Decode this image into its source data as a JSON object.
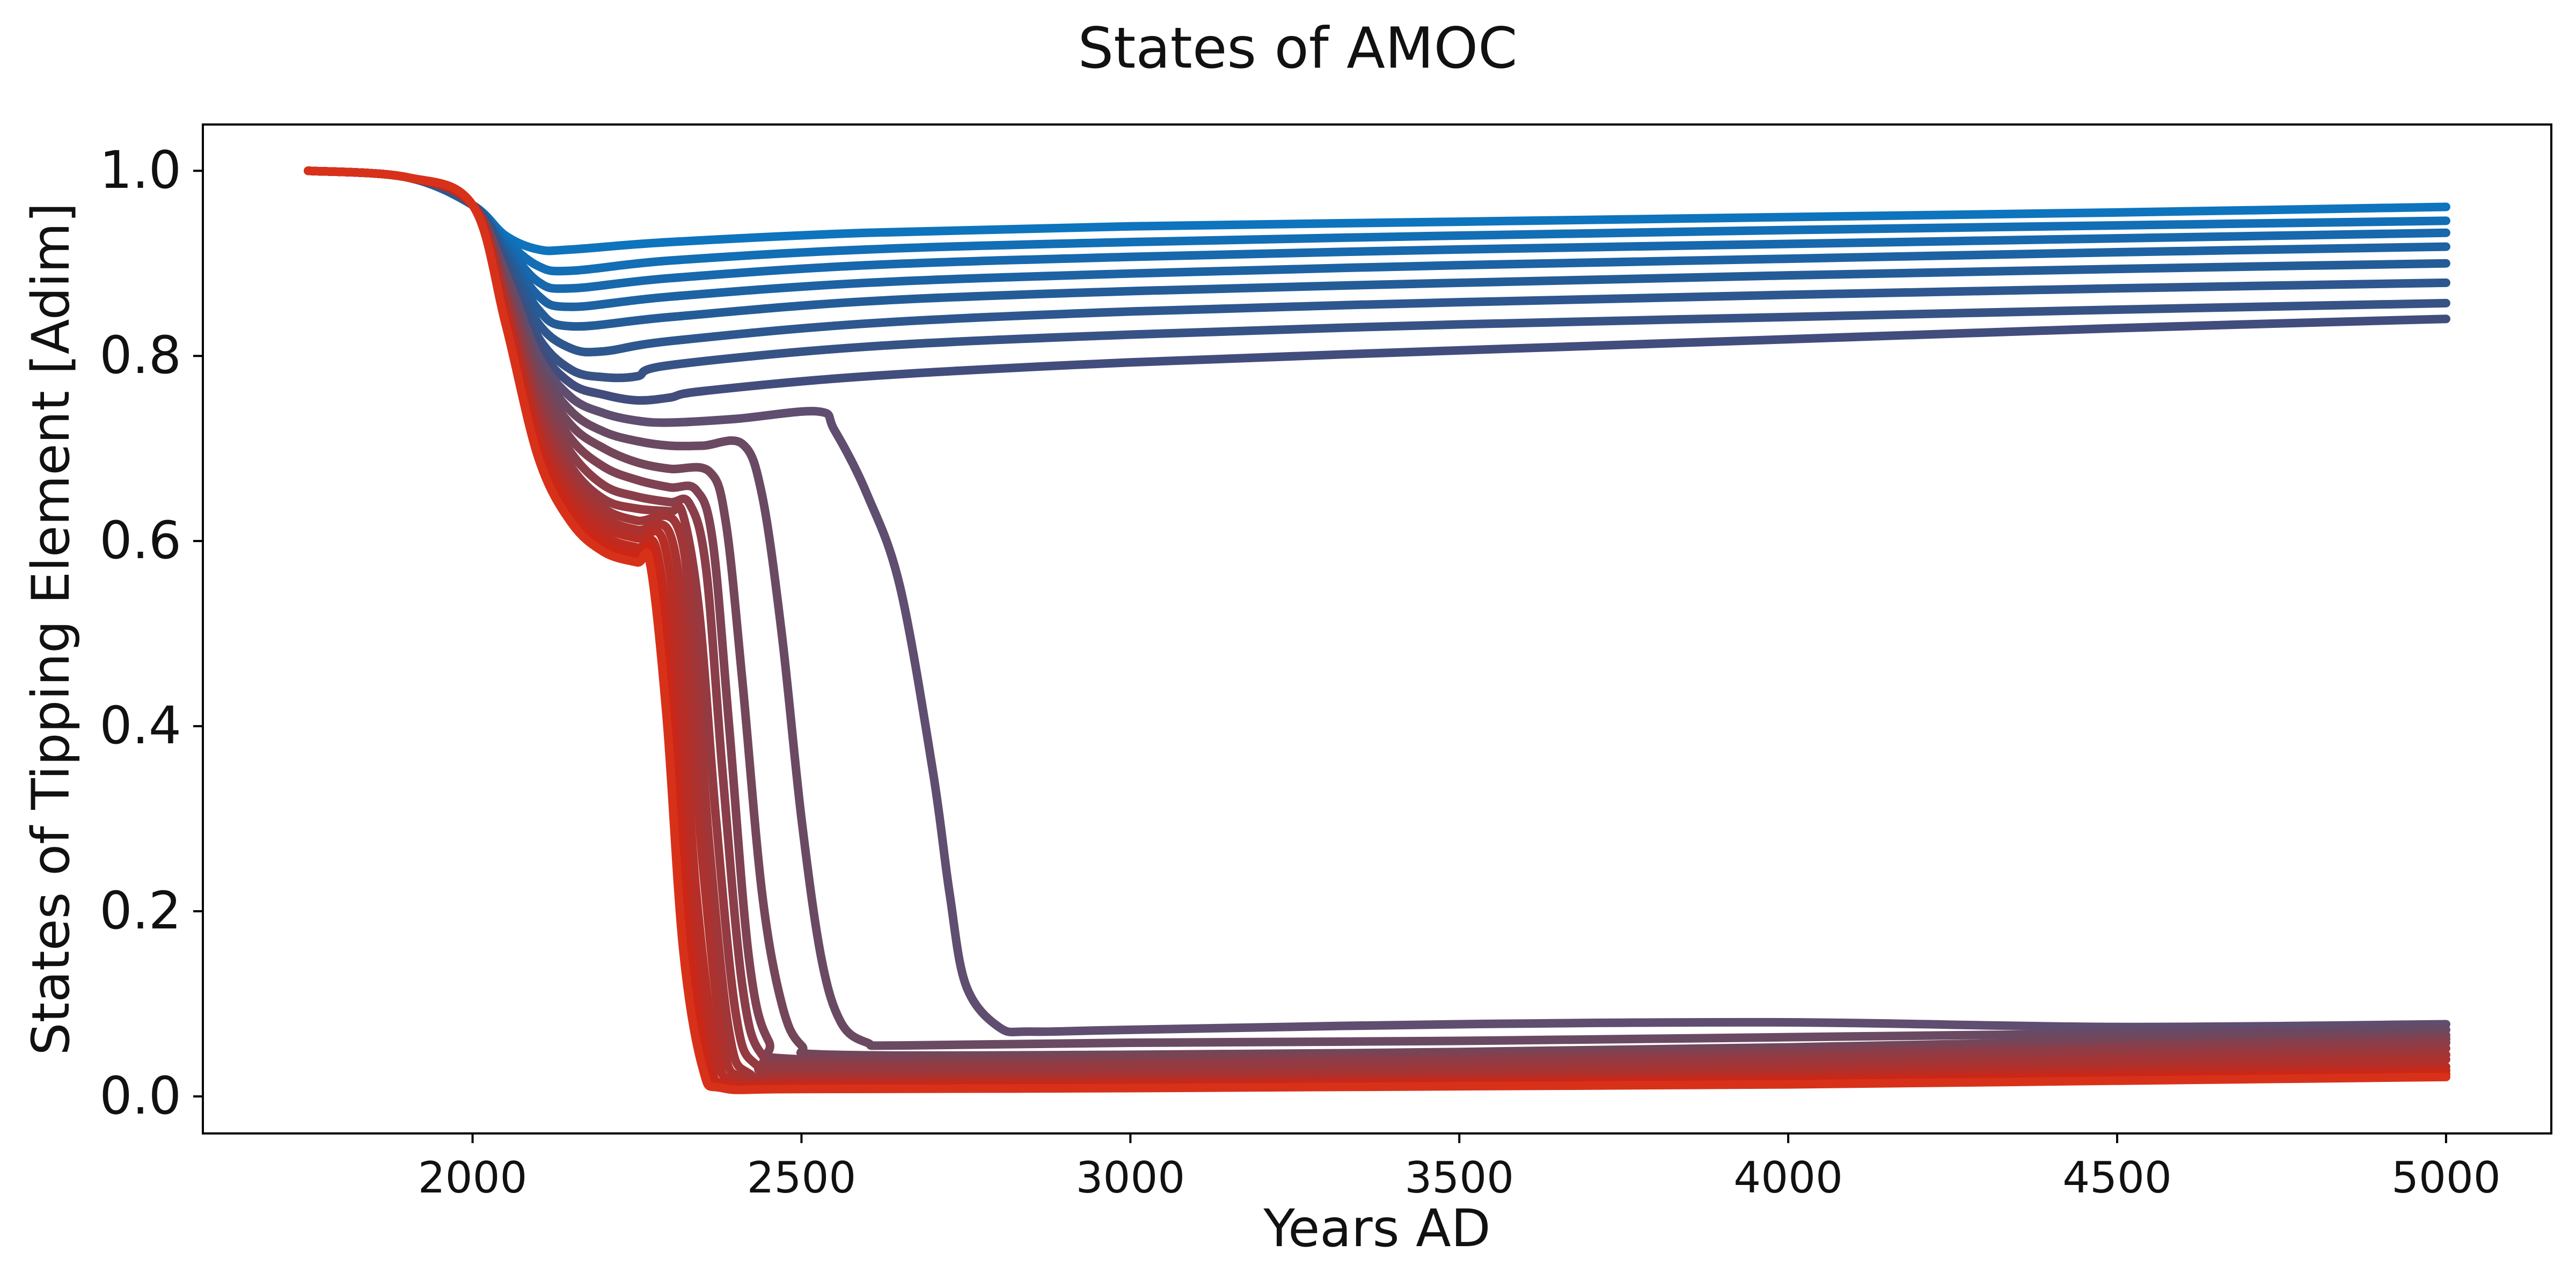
{
  "chart_data": {
    "type": "line",
    "title": "States of AMOC",
    "xlabel": "Years AD",
    "ylabel": "States of Tipping Element [Adim]",
    "xlim": [
      1590,
      5160
    ],
    "ylim": [
      -0.04,
      1.05
    ],
    "xticks": [
      2000,
      2500,
      3000,
      3500,
      4000,
      4500,
      5000
    ],
    "yticks": [
      0.0,
      0.2,
      0.4,
      0.6,
      0.8,
      1.0
    ],
    "xtick_labels": [
      "2000",
      "2500",
      "3000",
      "3500",
      "4000",
      "4500",
      "5000"
    ],
    "ytick_labels": [
      "0.0",
      "0.2",
      "0.4",
      "0.6",
      "0.8",
      "1.0"
    ],
    "grid": false,
    "legend": "none",
    "colors": {
      "blue_end": "#0d74bd",
      "red_end": "#d8311a"
    },
    "series": [
      {
        "color": "#0d74bd",
        "x": [
          1750,
          1900,
          2000,
          2050,
          2100,
          2150,
          2300,
          2600,
          3000,
          3500,
          4000,
          4500,
          5000
        ],
        "y": [
          1.0,
          0.993,
          0.963,
          0.93,
          0.915,
          0.915,
          0.923,
          0.933,
          0.94,
          0.945,
          0.95,
          0.955,
          0.961
        ]
      },
      {
        "color": "#126eb5",
        "x": [
          1750,
          1900,
          2000,
          2050,
          2100,
          2150,
          2300,
          2600,
          3000,
          3500,
          4000,
          4500,
          5000
        ],
        "y": [
          1.0,
          0.993,
          0.963,
          0.925,
          0.897,
          0.892,
          0.903,
          0.915,
          0.923,
          0.93,
          0.936,
          0.941,
          0.946
        ]
      },
      {
        "color": "#1768ac",
        "x": [
          1750,
          1900,
          2000,
          2050,
          2100,
          2150,
          2300,
          2600,
          3000,
          3500,
          4000,
          4500,
          5000
        ],
        "y": [
          1.0,
          0.993,
          0.963,
          0.92,
          0.88,
          0.873,
          0.884,
          0.898,
          0.907,
          0.915,
          0.921,
          0.927,
          0.933
        ]
      },
      {
        "color": "#1d62a3",
        "x": [
          1750,
          1900,
          2000,
          2050,
          2100,
          2150,
          2300,
          2600,
          3000,
          3500,
          4000,
          4500,
          5000
        ],
        "y": [
          1.0,
          0.993,
          0.963,
          0.915,
          0.865,
          0.853,
          0.864,
          0.879,
          0.889,
          0.898,
          0.905,
          0.912,
          0.918
        ]
      },
      {
        "color": "#245c98",
        "x": [
          1750,
          1900,
          2000,
          2050,
          2100,
          2150,
          2300,
          2600,
          3000,
          3500,
          4000,
          4500,
          5000
        ],
        "y": [
          1.0,
          0.993,
          0.963,
          0.91,
          0.85,
          0.832,
          0.842,
          0.859,
          0.87,
          0.879,
          0.887,
          0.894,
          0.9
        ]
      },
      {
        "color": "#2d578e",
        "x": [
          1750,
          1900,
          2000,
          2050,
          2100,
          2150,
          2200,
          2300,
          2600,
          3000,
          3500,
          4000,
          4500,
          5000
        ],
        "y": [
          1.0,
          0.993,
          0.963,
          0.905,
          0.835,
          0.808,
          0.805,
          0.816,
          0.835,
          0.848,
          0.858,
          0.866,
          0.873,
          0.879
        ]
      },
      {
        "color": "#375285",
        "x": [
          1750,
          1900,
          2000,
          2050,
          2100,
          2150,
          2200,
          2250,
          2300,
          2600,
          3000,
          3500,
          4000,
          4500,
          5000
        ],
        "y": [
          1.0,
          0.993,
          0.963,
          0.9,
          0.82,
          0.785,
          0.777,
          0.778,
          0.79,
          0.81,
          0.823,
          0.834,
          0.842,
          0.85,
          0.857
        ]
      },
      {
        "color": "#414d7c",
        "x": [
          1750,
          1900,
          2000,
          2050,
          2100,
          2150,
          2200,
          2250,
          2300,
          2350,
          2600,
          3000,
          3500,
          4000,
          4500,
          5000
        ],
        "y": [
          1.0,
          0.993,
          0.963,
          0.895,
          0.81,
          0.77,
          0.758,
          0.752,
          0.755,
          0.762,
          0.778,
          0.793,
          0.806,
          0.818,
          0.83,
          0.84
        ]
      },
      {
        "color": "#5f4e70",
        "x": [
          1750,
          1900,
          2000,
          2050,
          2100,
          2150,
          2200,
          2250,
          2300,
          2400,
          2525,
          2550,
          2600,
          2650,
          2700,
          2725,
          2750,
          2800,
          2850,
          3000,
          3500,
          4000,
          4500,
          5000
        ],
        "y": [
          1.0,
          0.993,
          0.963,
          0.89,
          0.8,
          0.755,
          0.738,
          0.73,
          0.728,
          0.732,
          0.74,
          0.72,
          0.65,
          0.55,
          0.35,
          0.22,
          0.12,
          0.075,
          0.07,
          0.072,
          0.078,
          0.08,
          0.075,
          0.078
        ]
      },
      {
        "color": "#6a4a63",
        "x": [
          1750,
          1900,
          2000,
          2050,
          2100,
          2150,
          2200,
          2250,
          2300,
          2350,
          2410,
          2440,
          2470,
          2500,
          2530,
          2560,
          2600,
          2650,
          3000,
          3500,
          4000,
          4500,
          5000
        ],
        "y": [
          1.0,
          0.993,
          0.963,
          0.885,
          0.79,
          0.74,
          0.718,
          0.708,
          0.703,
          0.703,
          0.705,
          0.65,
          0.5,
          0.3,
          0.15,
          0.08,
          0.058,
          0.055,
          0.058,
          0.06,
          0.064,
          0.068,
          0.072
        ]
      },
      {
        "color": "#74465a",
        "x": [
          1750,
          1900,
          2000,
          2050,
          2100,
          2150,
          2200,
          2250,
          2300,
          2360,
          2385,
          2410,
          2440,
          2470,
          2500,
          2550,
          3000,
          3500,
          4000,
          4500,
          5000
        ],
        "y": [
          1.0,
          0.993,
          0.963,
          0.88,
          0.78,
          0.725,
          0.7,
          0.685,
          0.678,
          0.675,
          0.62,
          0.45,
          0.22,
          0.1,
          0.055,
          0.045,
          0.045,
          0.048,
          0.053,
          0.06,
          0.066
        ]
      },
      {
        "color": "#7f4252",
        "x": [
          1750,
          1900,
          2000,
          2050,
          2100,
          2150,
          2200,
          2250,
          2300,
          2340,
          2365,
          2390,
          2420,
          2450,
          2500,
          3000,
          3500,
          4000,
          4500,
          5000
        ],
        "y": [
          1.0,
          0.993,
          0.963,
          0.875,
          0.77,
          0.71,
          0.68,
          0.666,
          0.658,
          0.655,
          0.6,
          0.4,
          0.15,
          0.06,
          0.04,
          0.04,
          0.043,
          0.048,
          0.055,
          0.062
        ]
      },
      {
        "color": "#8a3e49",
        "x": [
          1750,
          1900,
          2000,
          2050,
          2100,
          2150,
          2200,
          2250,
          2300,
          2330,
          2355,
          2380,
          2410,
          2440,
          2500,
          3000,
          3500,
          4000,
          4500,
          5000
        ],
        "y": [
          1.0,
          0.993,
          0.963,
          0.87,
          0.76,
          0.695,
          0.66,
          0.648,
          0.642,
          0.64,
          0.57,
          0.35,
          0.12,
          0.045,
          0.035,
          0.036,
          0.04,
          0.045,
          0.052,
          0.058
        ]
      },
      {
        "color": "#953a40",
        "x": [
          1750,
          1900,
          2000,
          2050,
          2100,
          2150,
          2200,
          2250,
          2300,
          2320,
          2345,
          2370,
          2400,
          2430,
          2500,
          3000,
          3500,
          4000,
          4500,
          5000
        ],
        "y": [
          1.0,
          0.993,
          0.963,
          0.865,
          0.75,
          0.68,
          0.645,
          0.635,
          0.632,
          0.628,
          0.52,
          0.3,
          0.09,
          0.035,
          0.03,
          0.032,
          0.035,
          0.04,
          0.046,
          0.052
        ]
      },
      {
        "color": "#a03637",
        "x": [
          1750,
          1900,
          2000,
          2050,
          2100,
          2150,
          2200,
          2250,
          2310,
          2335,
          2360,
          2390,
          2420,
          2500,
          3000,
          3500,
          4000,
          4500,
          5000
        ],
        "y": [
          1.0,
          0.993,
          0.963,
          0.86,
          0.74,
          0.67,
          0.635,
          0.622,
          0.618,
          0.5,
          0.27,
          0.07,
          0.025,
          0.022,
          0.024,
          0.028,
          0.034,
          0.04,
          0.045
        ]
      },
      {
        "color": "#ab322e",
        "x": [
          1750,
          1900,
          2000,
          2050,
          2100,
          2150,
          2200,
          2250,
          2300,
          2325,
          2350,
          2380,
          2410,
          2500,
          3000,
          3500,
          4000,
          4500,
          5000
        ],
        "y": [
          1.0,
          0.993,
          0.963,
          0.855,
          0.73,
          0.66,
          0.625,
          0.612,
          0.608,
          0.48,
          0.25,
          0.06,
          0.02,
          0.018,
          0.02,
          0.022,
          0.028,
          0.034,
          0.04
        ]
      },
      {
        "color": "#b62e26",
        "x": [
          1750,
          1900,
          2000,
          2050,
          2100,
          2150,
          2200,
          2250,
          2290,
          2315,
          2340,
          2370,
          2400,
          2500,
          3000,
          3500,
          4000,
          4500,
          5000
        ],
        "y": [
          1.0,
          0.993,
          0.963,
          0.85,
          0.72,
          0.65,
          0.615,
          0.603,
          0.6,
          0.46,
          0.22,
          0.05,
          0.016,
          0.014,
          0.015,
          0.018,
          0.022,
          0.028,
          0.032
        ]
      },
      {
        "color": "#c12a1e",
        "x": [
          1750,
          1900,
          2000,
          2050,
          2100,
          2150,
          2200,
          2250,
          2280,
          2305,
          2330,
          2360,
          2390,
          2500,
          3000,
          3500,
          4000,
          4500,
          5000
        ],
        "y": [
          1.0,
          0.993,
          0.963,
          0.845,
          0.71,
          0.64,
          0.605,
          0.593,
          0.59,
          0.44,
          0.2,
          0.04,
          0.013,
          0.012,
          0.013,
          0.015,
          0.019,
          0.024,
          0.028
        ]
      },
      {
        "color": "#cc2616",
        "x": [
          1750,
          1900,
          2000,
          2050,
          2100,
          2150,
          2200,
          2250,
          2275,
          2300,
          2325,
          2355,
          2385,
          2500,
          3000,
          3500,
          4000,
          4500,
          5000
        ],
        "y": [
          1.0,
          0.993,
          0.963,
          0.84,
          0.7,
          0.63,
          0.595,
          0.584,
          0.582,
          0.42,
          0.18,
          0.035,
          0.011,
          0.01,
          0.011,
          0.013,
          0.016,
          0.02,
          0.024
        ]
      },
      {
        "color": "#d8311a",
        "x": [
          1750,
          1900,
          2000,
          2050,
          2100,
          2150,
          2200,
          2250,
          2270,
          2295,
          2320,
          2350,
          2380,
          2500,
          3000,
          3500,
          4000,
          4500,
          5000
        ],
        "y": [
          1.0,
          0.993,
          0.963,
          0.835,
          0.69,
          0.62,
          0.588,
          0.577,
          0.575,
          0.41,
          0.16,
          0.03,
          0.009,
          0.008,
          0.009,
          0.011,
          0.013,
          0.017,
          0.021
        ]
      }
    ]
  }
}
